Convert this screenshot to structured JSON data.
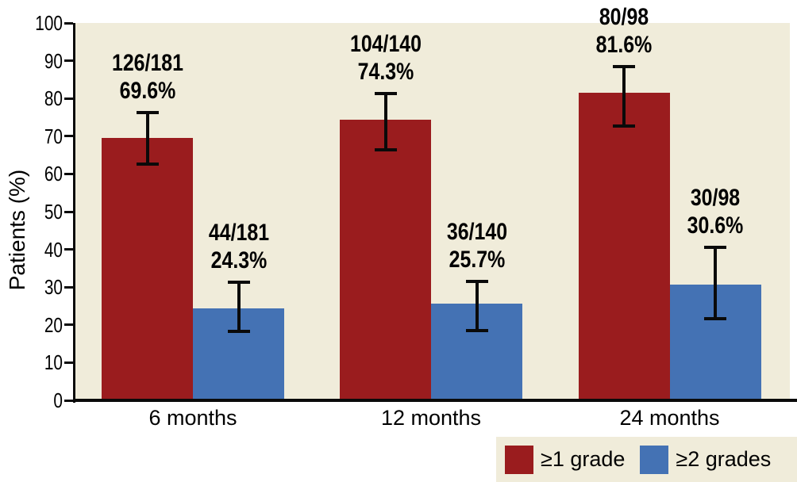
{
  "chart_data": {
    "type": "bar",
    "ylabel": "Patients (%)",
    "ylim": [
      0,
      100
    ],
    "ytick_labels": [
      "0",
      "10",
      "20",
      "30",
      "40",
      "50",
      "60",
      "70",
      "80",
      "90",
      "100"
    ],
    "categories": [
      "6 months",
      "12 months",
      "24 months"
    ],
    "grid": false,
    "legend_position": "bottom-right",
    "plot_background": "#F0ECDA",
    "error_bars": "95% CI (read from pixels)",
    "series": [
      {
        "name": "≥1 grade",
        "color": "#9A1C1E",
        "points": [
          {
            "category": "6 months",
            "frac": "126/181",
            "pct": "69.6%",
            "value": 69.6,
            "ci": [
              62.7,
              76.2
            ]
          },
          {
            "category": "12 months",
            "frac": "104/140",
            "pct": "74.3%",
            "value": 74.3,
            "ci": [
              66.3,
              81.2
            ]
          },
          {
            "category": "24 months",
            "frac": "80/98",
            "pct": "81.6%",
            "value": 81.6,
            "ci": [
              72.6,
              88.4
            ]
          }
        ]
      },
      {
        "name": "≥2 grades",
        "color": "#4472B4",
        "points": [
          {
            "category": "6 months",
            "frac": "44/181",
            "pct": "24.3%",
            "value": 24.3,
            "ci": [
              18.3,
              31.2
            ]
          },
          {
            "category": "12 months",
            "frac": "36/140",
            "pct": "25.7%",
            "value": 25.7,
            "ci": [
              18.5,
              31.6
            ]
          },
          {
            "category": "24 months",
            "frac": "30/98",
            "pct": "30.6%",
            "value": 30.6,
            "ci": [
              21.7,
              40.6
            ]
          }
        ]
      }
    ]
  }
}
